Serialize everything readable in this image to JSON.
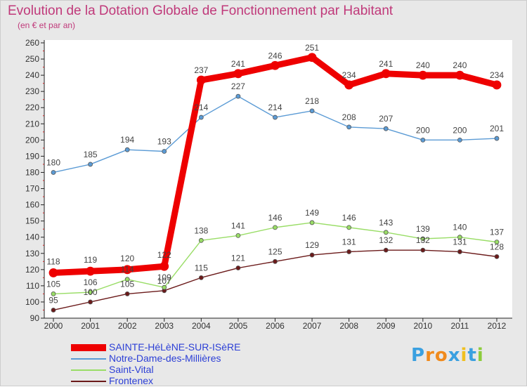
{
  "chart_data": {
    "type": "line",
    "title": "Evolution de la Dotation Globale de Fonctionnement par Habitant",
    "subtitle": "(en € et par an)",
    "xlabel": "",
    "ylabel": "",
    "categories": [
      "2000",
      "2001",
      "2002",
      "2003",
      "2004",
      "2005",
      "2006",
      "2007",
      "2008",
      "2009",
      "2010",
      "2011",
      "2012"
    ],
    "ylim": [
      90,
      260
    ],
    "yticks": [
      90,
      100,
      110,
      120,
      130,
      140,
      150,
      160,
      170,
      180,
      190,
      200,
      210,
      220,
      230,
      240,
      250,
      260
    ],
    "grid": false,
    "legend_position": "bottom-left",
    "series": [
      {
        "name": "SAINTE-HéLèNE-SUR-ISèRE",
        "color": "#ee0000",
        "values": [
          118,
          119,
          120,
          122,
          237,
          241,
          246,
          251,
          234,
          241,
          240,
          240,
          234
        ]
      },
      {
        "name": "Notre-Dame-des-Millières",
        "color": "#5b9bd5",
        "values": [
          180,
          185,
          194,
          193,
          214,
          227,
          214,
          218,
          208,
          207,
          200,
          200,
          201
        ]
      },
      {
        "name": "Saint-Vital",
        "color": "#99dd66",
        "values": [
          105,
          106,
          114,
          109,
          138,
          141,
          146,
          149,
          146,
          143,
          139,
          140,
          137
        ]
      },
      {
        "name": "Frontenex",
        "color": "#6b1a1a",
        "values": [
          95,
          100,
          105,
          107,
          115,
          121,
          125,
          129,
          131,
          132,
          132,
          131,
          128
        ]
      }
    ]
  },
  "logo": {
    "letters": [
      "P",
      "r",
      "o",
      "x",
      "i",
      "t",
      "i"
    ],
    "colors": [
      "#3aa0e0",
      "#f08a1c",
      "#f08a1c",
      "#3aa0e0",
      "#f0c020",
      "#3aa0e0",
      "#8ccc3c"
    ]
  }
}
